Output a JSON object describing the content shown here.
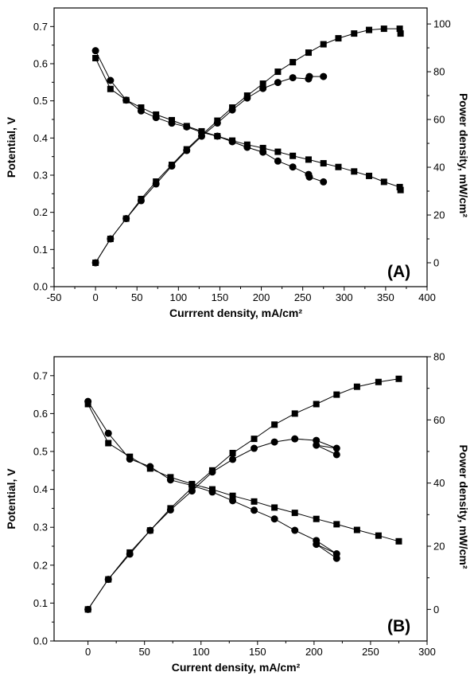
{
  "chart_data": [
    {
      "type": "line",
      "panel_label": "(A)",
      "xlabel": "Currrent density, mA/cm²",
      "ylabel_left": "Potential, V",
      "ylabel_right": "Power density, mW/cm²",
      "xlim": [
        -50,
        400
      ],
      "ylim_left": [
        0.0,
        0.75
      ],
      "ylim_right": [
        -10,
        106.7
      ],
      "x_ticks": [
        -50,
        0,
        50,
        100,
        150,
        200,
        250,
        300,
        350,
        400
      ],
      "y_left_ticks": [
        0.0,
        0.1,
        0.2,
        0.3,
        0.4,
        0.5,
        0.6,
        0.7
      ],
      "y_right_ticks": [
        0,
        20,
        40,
        60,
        80,
        100
      ],
      "grid": false,
      "series": [
        {
          "marker": "square",
          "axis": "left",
          "x": [
            0,
            18,
            37,
            55,
            73,
            92,
            110,
            128,
            147,
            165,
            183,
            202,
            220,
            238,
            257,
            275,
            293,
            312,
            330,
            348,
            367,
            368
          ],
          "y": [
            0.615,
            0.532,
            0.502,
            0.482,
            0.463,
            0.448,
            0.432,
            0.418,
            0.405,
            0.393,
            0.382,
            0.373,
            0.363,
            0.352,
            0.342,
            0.332,
            0.322,
            0.31,
            0.298,
            0.282,
            0.268,
            0.26
          ]
        },
        {
          "marker": "circle",
          "axis": "left",
          "x": [
            0,
            18,
            37,
            55,
            73,
            92,
            110,
            128,
            147,
            165,
            183,
            202,
            220,
            238,
            257,
            258,
            275
          ],
          "y": [
            0.635,
            0.555,
            0.502,
            0.473,
            0.455,
            0.44,
            0.43,
            0.415,
            0.405,
            0.39,
            0.375,
            0.362,
            0.338,
            0.322,
            0.302,
            0.295,
            0.282
          ]
        },
        {
          "marker": "square",
          "axis": "right",
          "x": [
            0,
            18,
            37,
            55,
            73,
            92,
            110,
            128,
            147,
            165,
            183,
            202,
            220,
            238,
            257,
            275,
            293,
            312,
            330,
            348,
            367,
            368
          ],
          "y": [
            0,
            10,
            18.5,
            26.7,
            34,
            41,
            47.5,
            53.5,
            59.5,
            65,
            70,
            75,
            80,
            84,
            88,
            91.5,
            94,
            96,
            97.5,
            98,
            98,
            96
          ]
        },
        {
          "marker": "circle",
          "axis": "right",
          "x": [
            0,
            18,
            37,
            55,
            73,
            92,
            110,
            128,
            147,
            165,
            183,
            202,
            220,
            238,
            257,
            258,
            275
          ],
          "y": [
            0,
            10,
            18.5,
            26,
            33,
            40.5,
            47,
            53,
            58.5,
            64,
            69,
            73,
            75.5,
            77.5,
            77,
            78,
            78
          ]
        }
      ]
    },
    {
      "type": "line",
      "panel_label": "(B)",
      "xlabel": "Current density, mA/cm²",
      "ylabel_left": "Potential, V",
      "ylabel_right": "Power density, mW/cm²",
      "xlim": [
        -30,
        300
      ],
      "ylim_left": [
        0.0,
        0.75
      ],
      "ylim_right": [
        -10,
        80
      ],
      "x_ticks": [
        0,
        50,
        100,
        150,
        200,
        250,
        300
      ],
      "y_left_ticks": [
        0.0,
        0.1,
        0.2,
        0.3,
        0.4,
        0.5,
        0.6,
        0.7
      ],
      "y_right_ticks": [
        0,
        20,
        40,
        60,
        80
      ],
      "grid": false,
      "series": [
        {
          "marker": "square",
          "axis": "left",
          "x": [
            0,
            18,
            37,
            55,
            73,
            92,
            110,
            128,
            147,
            165,
            183,
            202,
            220,
            238,
            257,
            275
          ],
          "y": [
            0.625,
            0.522,
            0.486,
            0.455,
            0.432,
            0.414,
            0.4,
            0.383,
            0.368,
            0.352,
            0.338,
            0.322,
            0.308,
            0.293,
            0.278,
            0.263
          ]
        },
        {
          "marker": "circle",
          "axis": "left",
          "x": [
            0,
            18,
            37,
            55,
            73,
            92,
            110,
            128,
            147,
            165,
            183,
            202,
            220,
            202,
            220
          ],
          "y": [
            0.632,
            0.548,
            0.48,
            0.46,
            0.425,
            0.41,
            0.393,
            0.37,
            0.345,
            0.322,
            0.292,
            0.265,
            0.23,
            0.255,
            0.218
          ]
        },
        {
          "marker": "square",
          "axis": "right",
          "x": [
            0,
            18,
            37,
            55,
            73,
            92,
            110,
            128,
            147,
            165,
            183,
            202,
            220,
            238,
            257,
            275
          ],
          "y": [
            0,
            9.5,
            18,
            25,
            32,
            38.5,
            44,
            49.5,
            54,
            58.5,
            62,
            65,
            68,
            70.5,
            72,
            73
          ]
        },
        {
          "marker": "circle",
          "axis": "right",
          "x": [
            0,
            18,
            37,
            55,
            73,
            92,
            110,
            128,
            147,
            165,
            183,
            202,
            220,
            202,
            220
          ],
          "y": [
            0,
            9.5,
            17.5,
            25,
            31.5,
            37.5,
            43.5,
            47.5,
            51,
            53,
            54,
            53.5,
            51,
            52,
            49
          ]
        }
      ]
    }
  ]
}
